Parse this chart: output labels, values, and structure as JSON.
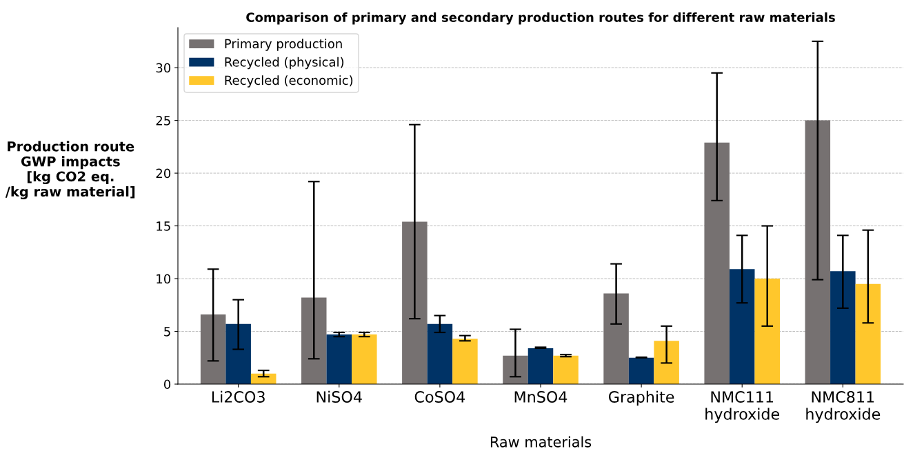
{
  "chart_data": {
    "type": "bar",
    "title": "Comparison of primary and secondary production routes for different raw materials",
    "xlabel": "Raw materials",
    "ylabel": "Production route\nGWP impacts\n[kg CO2 eq.\n/kg raw material]",
    "categories": [
      "Li2CO3",
      "NiSO4",
      "CoSO4",
      "MnSO4",
      "Graphite",
      "NMC111\nhydroxide",
      "NMC811\nhydroxide"
    ],
    "series": [
      {
        "name": "Primary production",
        "color": "#767171",
        "values": [
          6.6,
          8.2,
          15.4,
          2.7,
          8.6,
          22.9,
          25.0
        ],
        "errors": [
          [
            2.2,
            10.9
          ],
          [
            2.4,
            19.2
          ],
          [
            6.2,
            24.6
          ],
          [
            0.7,
            5.2
          ],
          [
            5.7,
            11.4
          ],
          [
            17.4,
            29.5
          ],
          [
            9.9,
            32.5
          ]
        ]
      },
      {
        "name": "Recycled (physical)",
        "color": "#003366",
        "values": [
          5.7,
          4.7,
          5.7,
          3.4,
          2.5,
          10.9,
          10.7
        ],
        "errors": [
          [
            3.3,
            8.0
          ],
          [
            4.5,
            4.9
          ],
          [
            4.9,
            6.5
          ],
          [
            3.4,
            3.5
          ],
          [
            2.5,
            2.55
          ],
          [
            7.7,
            14.1
          ],
          [
            7.2,
            14.1
          ]
        ]
      },
      {
        "name": "Recycled (economic)",
        "color": "#ffc72c",
        "values": [
          1.0,
          4.7,
          4.3,
          2.7,
          4.1,
          10.0,
          9.5
        ],
        "errors": [
          [
            0.7,
            1.3
          ],
          [
            4.5,
            4.9
          ],
          [
            4.1,
            4.6
          ],
          [
            2.6,
            2.8
          ],
          [
            2.0,
            5.5
          ],
          [
            5.5,
            15.0
          ],
          [
            5.8,
            14.6
          ]
        ]
      }
    ],
    "ylim": [
      0,
      33.8
    ],
    "yticks": [
      0,
      5,
      10,
      15,
      20,
      25,
      30
    ],
    "grid": "y",
    "legend": "top left"
  }
}
